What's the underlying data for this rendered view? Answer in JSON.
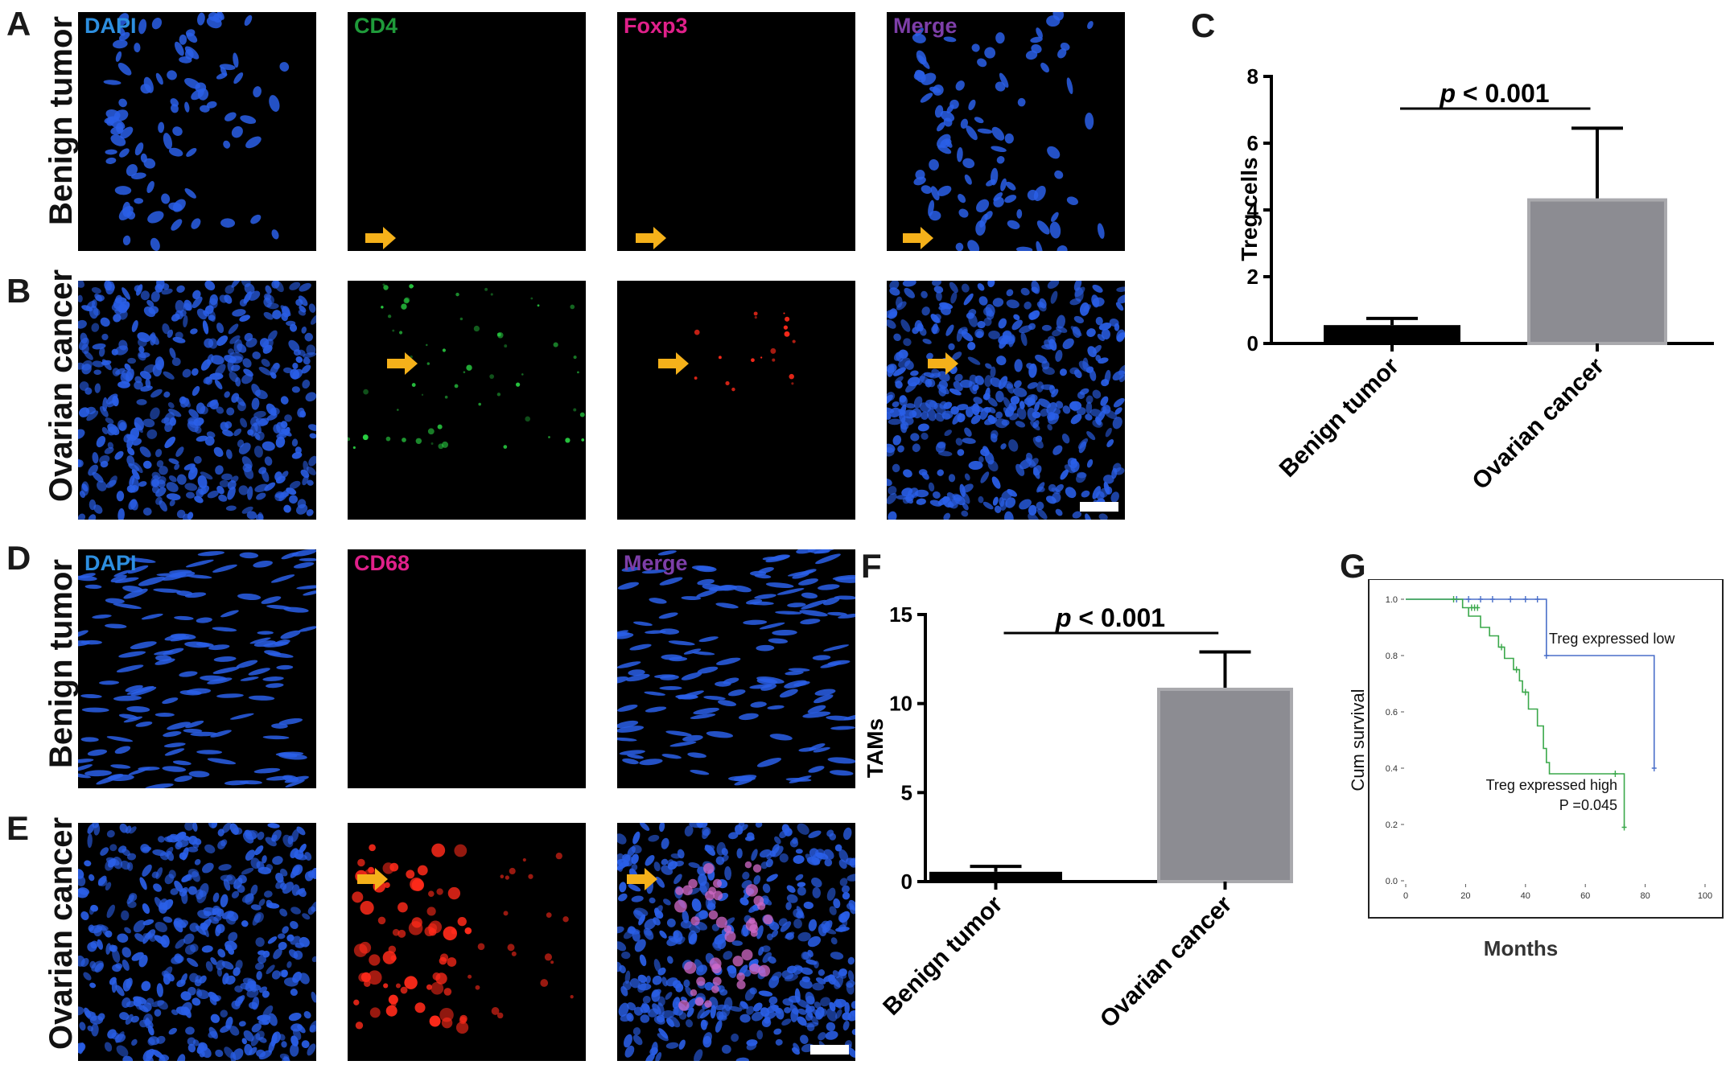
{
  "panels": {
    "a": "A",
    "b": "B",
    "c": "C",
    "d": "D",
    "e": "E",
    "f": "F",
    "g": "G"
  },
  "rows": {
    "benign": "Benign tumor",
    "ovarian": "Ovarian cancer"
  },
  "stains": {
    "dapi": "DAPI",
    "cd4": "CD4",
    "foxp3": "Foxp3",
    "merge": "Merge",
    "cd68": "CD68"
  },
  "colors": {
    "dapi": "#2d8fe0",
    "cd4": "#1f9b3a",
    "foxp3": "#e0208a",
    "merge": "#7d3ea8",
    "cd68": "#e0208a",
    "nuclei": "#2a5fe8",
    "cd4_signal": "#2ee84a",
    "red_signal": "#ff2a1a",
    "arrow": "#f5b11a",
    "bar_benign": "#000000",
    "bar_ovarian": "#8c8c92",
    "km_low": "#4a6fc9",
    "km_high": "#3aa84a"
  },
  "chart_data": [
    {
      "id": "C",
      "type": "bar",
      "categories": [
        "Benign tumor",
        "Ovarian cancer"
      ],
      "values": [
        0.55,
        4.3
      ],
      "errors": [
        0.2,
        2.15
      ],
      "ylabel": "Treg cells",
      "ylim": [
        0,
        8
      ],
      "yticks": [
        0,
        2,
        4,
        6,
        8
      ],
      "annotation_prefix": "p",
      "annotation_rest": " < 0.001"
    },
    {
      "id": "F",
      "type": "bar",
      "categories": [
        "Benign tumor",
        "Ovarian cancer"
      ],
      "values": [
        0.55,
        10.8
      ],
      "errors": [
        0.3,
        2.1
      ],
      "ylabel": "TAMs",
      "ylim": [
        0,
        15
      ],
      "yticks": [
        0,
        5,
        10,
        15
      ],
      "annotation_prefix": "p",
      "annotation_rest": " < 0.001"
    },
    {
      "id": "G",
      "type": "line",
      "xlabel": "Months",
      "ylabel": "Cum survival",
      "xlim": [
        0,
        100
      ],
      "ylim": [
        0,
        1
      ],
      "xticks": [
        "0",
        "20",
        "40",
        "60",
        "80",
        "100"
      ],
      "yticks": [
        "0.0",
        "0.2",
        "0.4",
        "0.6",
        "0.8",
        "1.0"
      ],
      "series": [
        {
          "name": "Treg expressed low",
          "steps": [
            [
              0,
              1.0
            ],
            [
              47,
              1.0
            ],
            [
              47,
              0.8
            ],
            [
              83,
              0.8
            ],
            [
              83,
              0.4
            ]
          ],
          "censored": [
            [
              17,
              1.0
            ],
            [
              21,
              1.0
            ],
            [
              25,
              1.0
            ],
            [
              29,
              1.0
            ],
            [
              35,
              1.0
            ],
            [
              40,
              1.0
            ],
            [
              44,
              1.0
            ],
            [
              47,
              0.8
            ],
            [
              83,
              0.4
            ]
          ]
        },
        {
          "name": "Treg expressed high",
          "steps": [
            [
              0,
              1.0
            ],
            [
              19,
              1.0
            ],
            [
              19,
              0.97
            ],
            [
              21,
              0.97
            ],
            [
              21,
              0.94
            ],
            [
              25,
              0.94
            ],
            [
              25,
              0.9
            ],
            [
              28,
              0.9
            ],
            [
              28,
              0.87
            ],
            [
              31,
              0.87
            ],
            [
              31,
              0.83
            ],
            [
              33,
              0.83
            ],
            [
              33,
              0.79
            ],
            [
              36,
              0.79
            ],
            [
              36,
              0.75
            ],
            [
              38,
              0.75
            ],
            [
              38,
              0.71
            ],
            [
              39,
              0.71
            ],
            [
              39,
              0.67
            ],
            [
              41,
              0.67
            ],
            [
              41,
              0.61
            ],
            [
              44,
              0.61
            ],
            [
              44,
              0.55
            ],
            [
              46,
              0.55
            ],
            [
              46,
              0.47
            ],
            [
              47,
              0.47
            ],
            [
              47,
              0.42
            ],
            [
              48,
              0.42
            ],
            [
              48,
              0.38
            ],
            [
              73,
              0.38
            ],
            [
              73,
              0.19
            ]
          ],
          "censored": [
            [
              16,
              1.0
            ],
            [
              22,
              0.97
            ],
            [
              23,
              0.97
            ],
            [
              24,
              0.97
            ],
            [
              32,
              0.83
            ],
            [
              37,
              0.75
            ],
            [
              40,
              0.67
            ],
            [
              70,
              0.38
            ],
            [
              73,
              0.19
            ]
          ]
        }
      ],
      "legend_low": "Treg expressed low",
      "legend_high": "Treg expressed high",
      "pvalue": "P =0.045"
    }
  ]
}
